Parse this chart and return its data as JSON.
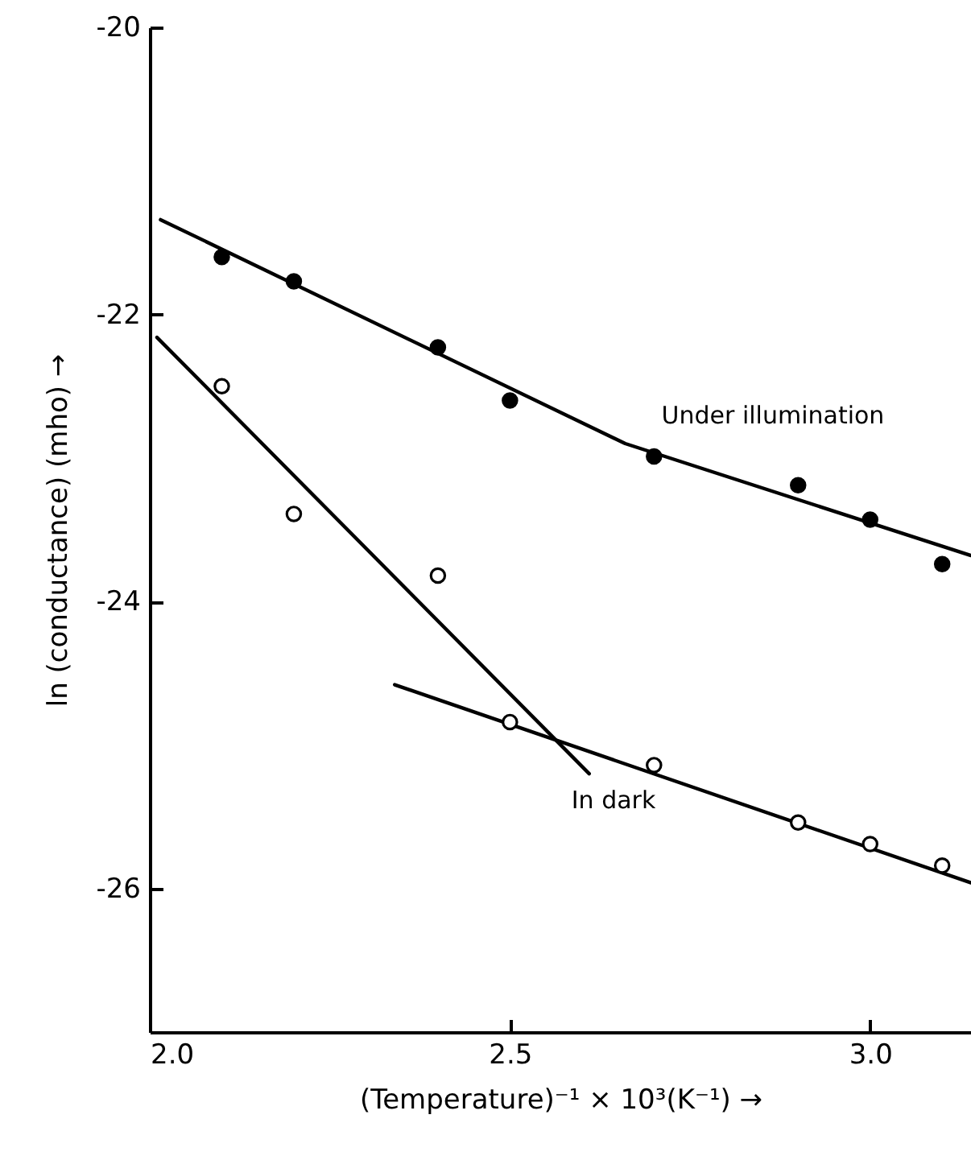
{
  "chart_data": {
    "type": "scatter",
    "xlabel": "(Temperature)⁻¹ × 10³(K⁻¹) →",
    "ylabel": "ln (conductance) (mho) →",
    "xlim": [
      2.0,
      3.14
    ],
    "ylim": [
      -27,
      -20
    ],
    "xticks": [
      {
        "value": 2,
        "label": "2.0"
      },
      2.5,
      {
        "value": 3,
        "label": "3.0"
      }
    ],
    "yticks": [
      -20,
      -22,
      -24,
      -26
    ],
    "grid": false,
    "series": [
      {
        "marker": "circle",
        "color": "#000000",
        "x": [
          2.1,
          2.2,
          2.4,
          2.5,
          2.7,
          2.9,
          3.0,
          3.1
        ],
        "values": [
          -21.6,
          -21.77,
          -22.23,
          -22.6,
          -22.99,
          -23.19,
          -23.43,
          -23.74
        ]
      },
      {
        "marker": "circle",
        "color": "#ffffff",
        "x": [
          2.1,
          2.2,
          2.4,
          2.5,
          2.7,
          2.9,
          3.0,
          3.1
        ],
        "values": [
          -22.5,
          -23.39,
          -23.82,
          -24.84,
          -25.14,
          -25.54,
          -25.69,
          -25.84
        ]
      },
      {
        "type": "line",
        "marker": "none",
        "color": "#000000",
        "x": [
          2.015,
          2.66,
          3.14
        ],
        "values": [
          -21.34,
          -22.9,
          -23.68
        ]
      },
      {
        "type": "line",
        "marker": "none",
        "color": "#000000",
        "x": [
          2.01,
          2.61
        ],
        "values": [
          -22.16,
          -25.2
        ]
      },
      {
        "type": "line",
        "marker": "none",
        "color": "#000000",
        "x": [
          2.34,
          3.14
        ],
        "values": [
          -24.58,
          -25.96
        ]
      }
    ],
    "annotations": [
      "Under illumination",
      "In dark"
    ]
  }
}
